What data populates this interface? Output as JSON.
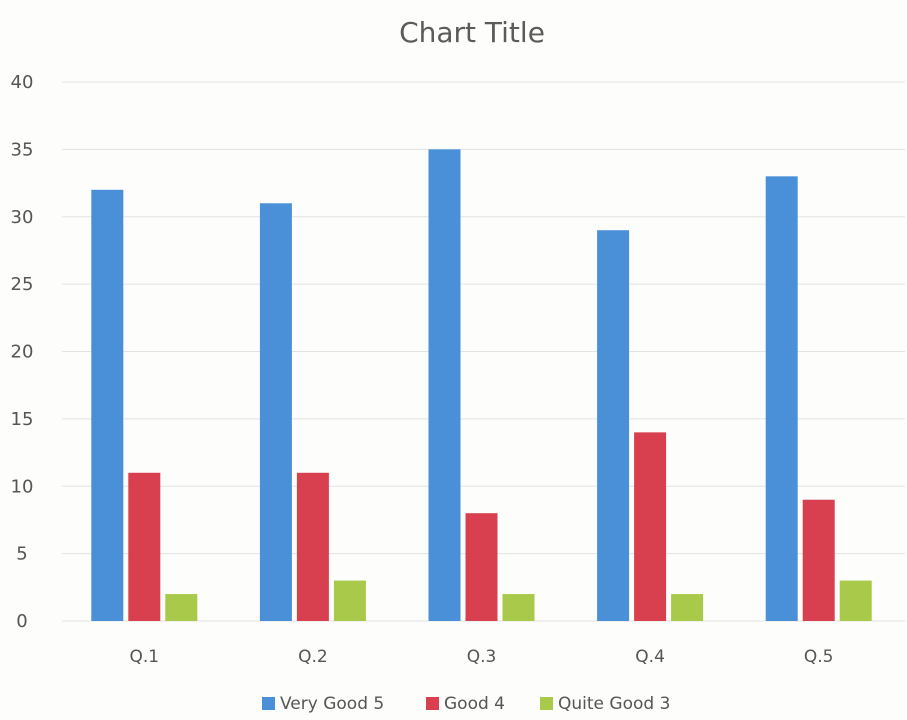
{
  "chart_data": {
    "type": "bar",
    "title": "Chart Title",
    "categories": [
      "Q.1",
      "Q.2",
      "Q.3",
      "Q.4",
      "Q.5"
    ],
    "series": [
      {
        "name": "Very Good 5",
        "color": "#4a90d9",
        "values": [
          32,
          31,
          35,
          29,
          33
        ]
      },
      {
        "name": "Good 4",
        "color": "#d9404f",
        "values": [
          11,
          11,
          8,
          14,
          9
        ]
      },
      {
        "name": "Quite Good 3",
        "color": "#a8c94a",
        "values": [
          2,
          3,
          2,
          2,
          3
        ]
      }
    ],
    "ylim": [
      0,
      40
    ],
    "yticks": [
      0,
      5,
      10,
      15,
      20,
      25,
      30,
      35,
      40
    ],
    "grid": true,
    "legend": "bottom"
  }
}
